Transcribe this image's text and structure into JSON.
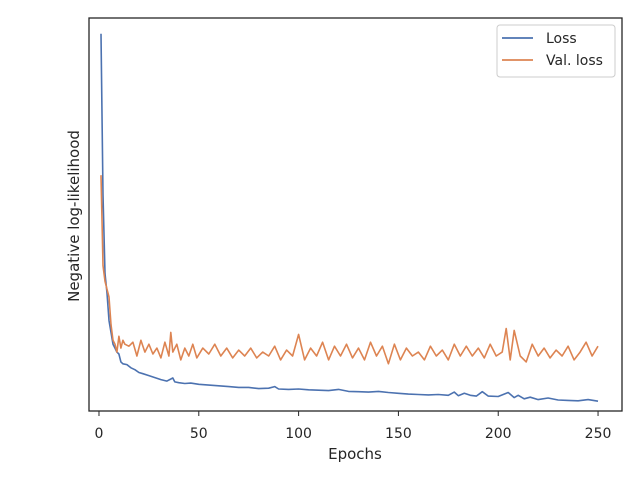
{
  "chart_data": {
    "type": "line",
    "xlabel": "Epochs",
    "ylabel": "Negative log-likelihood",
    "xlim": [
      -5,
      262
    ],
    "ylim": [
      0.0,
      1.0
    ],
    "x_ticks": [
      0,
      50,
      100,
      150,
      200,
      250
    ],
    "y_ticks_visible": false,
    "grid": false,
    "legend_position": "top-right",
    "series": [
      {
        "name": "Loss",
        "color": "#4c72b0",
        "x": [
          1,
          2,
          3,
          4,
          5,
          6,
          7,
          8,
          9,
          10,
          11,
          12,
          14,
          16,
          18,
          20,
          22,
          25,
          28,
          31,
          34,
          37,
          38,
          40,
          43,
          46,
          50,
          55,
          60,
          65,
          70,
          75,
          80,
          85,
          88,
          90,
          95,
          100,
          105,
          110,
          115,
          120,
          125,
          130,
          135,
          140,
          145,
          150,
          155,
          160,
          165,
          170,
          175,
          178,
          180,
          183,
          186,
          189,
          192,
          195,
          200,
          205,
          208,
          210,
          213,
          216,
          220,
          225,
          230,
          235,
          240,
          245,
          250
        ],
        "values": [
          0.96,
          0.55,
          0.35,
          0.3,
          0.23,
          0.2,
          0.17,
          0.16,
          0.15,
          0.145,
          0.125,
          0.12,
          0.118,
          0.11,
          0.105,
          0.098,
          0.095,
          0.09,
          0.085,
          0.08,
          0.076,
          0.084,
          0.074,
          0.072,
          0.07,
          0.071,
          0.068,
          0.066,
          0.064,
          0.062,
          0.06,
          0.06,
          0.057,
          0.058,
          0.062,
          0.056,
          0.055,
          0.056,
          0.054,
          0.053,
          0.052,
          0.055,
          0.05,
          0.049,
          0.048,
          0.05,
          0.047,
          0.045,
          0.043,
          0.042,
          0.041,
          0.042,
          0.04,
          0.048,
          0.039,
          0.045,
          0.04,
          0.038,
          0.049,
          0.038,
          0.037,
          0.047,
          0.034,
          0.04,
          0.031,
          0.035,
          0.029,
          0.033,
          0.028,
          0.027,
          0.026,
          0.029,
          0.025
        ]
      },
      {
        "name": "Val. loss",
        "color": "#dd8452",
        "x": [
          1,
          2,
          3,
          4,
          5,
          6,
          7,
          8,
          9,
          10,
          11,
          12,
          13,
          15,
          17,
          19,
          21,
          23,
          25,
          27,
          29,
          31,
          33,
          35,
          36,
          37,
          39,
          41,
          43,
          45,
          47,
          49,
          52,
          55,
          58,
          61,
          64,
          67,
          70,
          73,
          76,
          79,
          82,
          85,
          88,
          91,
          94,
          97,
          100,
          103,
          106,
          109,
          112,
          115,
          118,
          121,
          124,
          127,
          130,
          133,
          136,
          139,
          142,
          145,
          148,
          151,
          154,
          157,
          160,
          163,
          166,
          169,
          172,
          175,
          178,
          181,
          184,
          187,
          190,
          193,
          196,
          199,
          202,
          204,
          206,
          208,
          211,
          214,
          217,
          220,
          223,
          226,
          229,
          232,
          235,
          238,
          241,
          244,
          247,
          250
        ],
        "values": [
          0.6,
          0.37,
          0.33,
          0.31,
          0.29,
          0.22,
          0.18,
          0.17,
          0.15,
          0.19,
          0.16,
          0.18,
          0.17,
          0.165,
          0.175,
          0.14,
          0.18,
          0.15,
          0.17,
          0.145,
          0.16,
          0.135,
          0.175,
          0.14,
          0.2,
          0.15,
          0.17,
          0.13,
          0.16,
          0.14,
          0.17,
          0.135,
          0.16,
          0.145,
          0.17,
          0.14,
          0.16,
          0.135,
          0.155,
          0.14,
          0.16,
          0.135,
          0.15,
          0.14,
          0.165,
          0.13,
          0.155,
          0.14,
          0.195,
          0.13,
          0.16,
          0.14,
          0.175,
          0.13,
          0.165,
          0.14,
          0.17,
          0.135,
          0.16,
          0.13,
          0.175,
          0.14,
          0.165,
          0.12,
          0.17,
          0.13,
          0.16,
          0.14,
          0.15,
          0.13,
          0.165,
          0.14,
          0.155,
          0.13,
          0.17,
          0.14,
          0.165,
          0.14,
          0.16,
          0.135,
          0.17,
          0.14,
          0.15,
          0.21,
          0.13,
          0.205,
          0.14,
          0.125,
          0.17,
          0.14,
          0.16,
          0.135,
          0.155,
          0.14,
          0.165,
          0.13,
          0.15,
          0.175,
          0.14,
          0.165
        ]
      }
    ]
  }
}
